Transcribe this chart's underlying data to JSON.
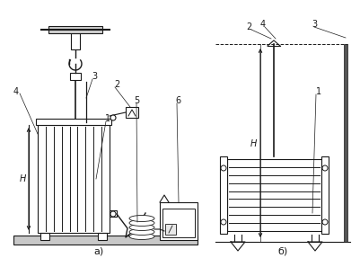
{
  "bg_color": "#ffffff",
  "line_color": "#1a1a1a",
  "label_a": "а)",
  "label_b": "б)"
}
